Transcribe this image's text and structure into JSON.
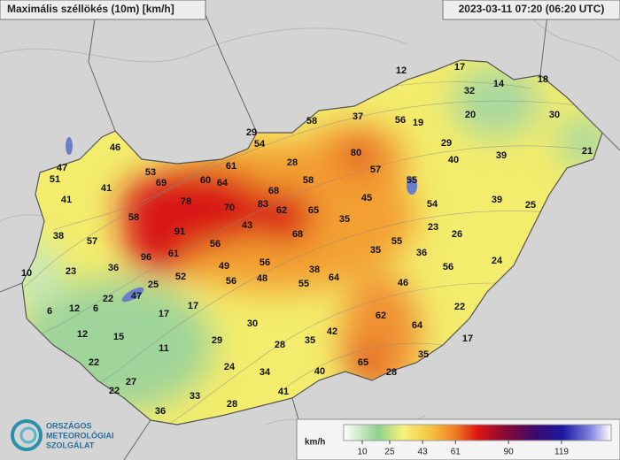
{
  "header": {
    "title": "Maximális széllökés (10m) [km/h]",
    "timestamp": "2023-03-11 07:20 (06:20 UTC)"
  },
  "stations": [
    12,
    17,
    32,
    14,
    18,
    20,
    30,
    56,
    19,
    37,
    58,
    29,
    54,
    61,
    28,
    80,
    57,
    29,
    40,
    39,
    21,
    47,
    51,
    46,
    53,
    69,
    60,
    64,
    41,
    78,
    70,
    68,
    83,
    62,
    65,
    58,
    45,
    55,
    54,
    39,
    25,
    41,
    58,
    43,
    35,
    23,
    26,
    68,
    38,
    57,
    91,
    56,
    55,
    35,
    36,
    24,
    56,
    96,
    61,
    49,
    56,
    38,
    10,
    23,
    36,
    52,
    56,
    48,
    55,
    64,
    46,
    25,
    22,
    47,
    22,
    6,
    12,
    6,
    17,
    17,
    62,
    64,
    12,
    15,
    30,
    42,
    17,
    29,
    11,
    28,
    35,
    22,
    24,
    65,
    35,
    27,
    34,
    40,
    28,
    22,
    33,
    41,
    28,
    36
  ],
  "legend": {
    "unit": "km/h",
    "ticks": [
      10,
      25,
      43,
      61,
      90,
      119
    ]
  },
  "logo": {
    "lines": [
      "ORSZÁGOS",
      "METEOROLÓGIAI",
      "SZOLGÁLAT"
    ]
  }
}
